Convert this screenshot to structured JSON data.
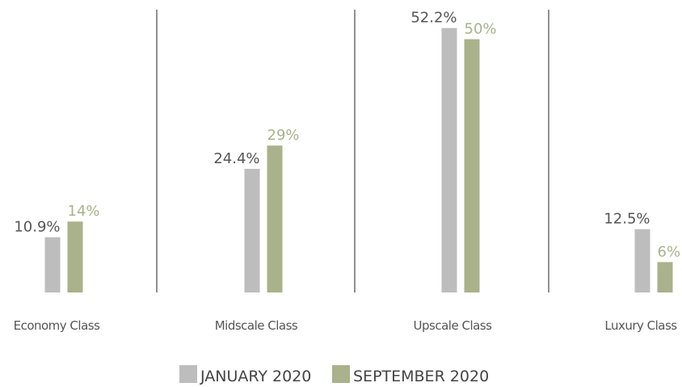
{
  "chart_data": {
    "type": "bar",
    "categories": [
      "Economy Class",
      "Midscale Class",
      "Upscale Class",
      "Luxury Class"
    ],
    "series": [
      {
        "name": "JANUARY 2020",
        "color": "#bdbdbe",
        "values": [
          10.9,
          24.4,
          52.2,
          12.5
        ],
        "value_labels": [
          "10.9%",
          "24.4%",
          "52.2%",
          "12.5%"
        ]
      },
      {
        "name": "SEPTEMBER 2020",
        "color": "#a9b28a",
        "values": [
          14,
          29,
          50,
          6
        ],
        "value_labels": [
          "14%",
          "29%",
          "50%",
          "6%"
        ]
      }
    ],
    "legend": "bottom"
  }
}
